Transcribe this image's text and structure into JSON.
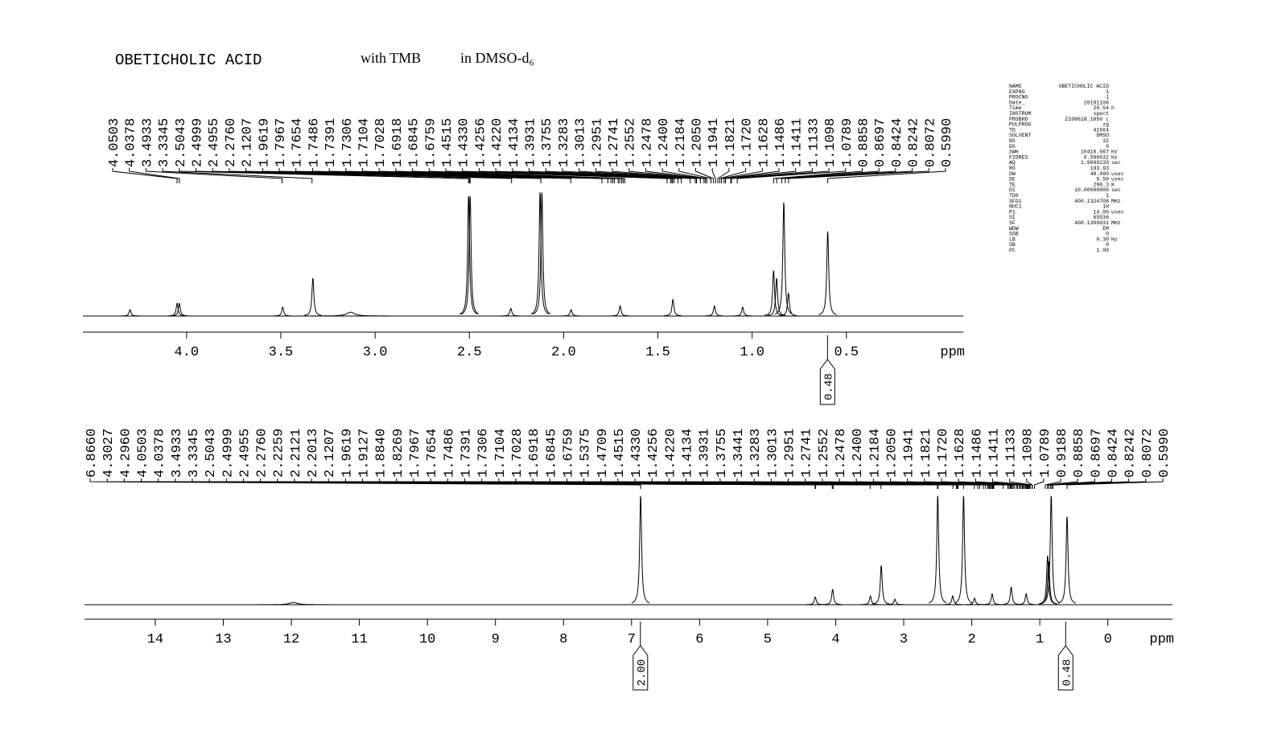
{
  "header": {
    "sample": "OBETICHOLIC ACID",
    "note": "with TMB",
    "solvent": "in DMSO-d₆"
  },
  "parameters": {
    "rows": [
      [
        "NAME",
        "OBETICHOLIC ACID",
        ""
      ],
      [
        "EXPNO",
        "1",
        ""
      ],
      [
        "PROCNO",
        "1",
        ""
      ],
      [
        "Date_",
        "20191106",
        ""
      ],
      [
        "Time",
        "20.54",
        "h"
      ],
      [
        "INSTRUM",
        "spect",
        ""
      ],
      [
        "PROBHD",
        "Z108618_1050 (",
        ""
      ],
      [
        "PULPROG",
        "zg",
        ""
      ],
      [
        "TD",
        "41664",
        ""
      ],
      [
        "SOLVENT",
        "DMSO",
        ""
      ],
      [
        "NS",
        "32",
        ""
      ],
      [
        "DS",
        "0",
        ""
      ],
      [
        "SWH",
        "10416.667",
        "Hz"
      ],
      [
        "FIDRES",
        "0.500032",
        "Hz"
      ],
      [
        "AQ",
        "1.9999220",
        "sec"
      ],
      [
        "RG",
        "193.93",
        ""
      ],
      [
        "DW",
        "48.000",
        "usec"
      ],
      [
        "DE",
        "6.50",
        "usec"
      ],
      [
        "TE",
        "296.3",
        "K"
      ],
      [
        "D1",
        "10.00000000",
        "sec"
      ],
      [
        "TD0",
        "1",
        ""
      ],
      [
        "SFO1",
        "400.1324708",
        "MHz"
      ],
      [
        "NUC1",
        "1H",
        ""
      ],
      [
        "P1",
        "14.00",
        "usec"
      ],
      [
        "SI",
        "65536",
        ""
      ],
      [
        "SF",
        "400.1300031",
        "MHz"
      ],
      [
        "WDW",
        "EM",
        ""
      ],
      [
        "SSB",
        "0",
        ""
      ],
      [
        "LB",
        "0.30",
        "Hz"
      ],
      [
        "GB",
        "0",
        ""
      ],
      [
        "PC",
        "1.00",
        ""
      ]
    ]
  },
  "chart_data": [
    {
      "type": "spectrum",
      "xlabel": "ppm",
      "xlim": [
        4.55,
        -0.12
      ],
      "xticks": [
        {
          "value": 4,
          "label": "4.0"
        },
        3.5,
        {
          "value": 3,
          "label": "3.0"
        },
        2.5,
        {
          "value": 2,
          "label": "2.0"
        },
        1.5,
        {
          "value": 1,
          "label": "1.0"
        },
        0.5
      ],
      "peaks": {
        "x": [
          4.3,
          4.05,
          4.038,
          3.49,
          3.33,
          3.13,
          2.504,
          2.496,
          2.28,
          2.125,
          2.115,
          1.96,
          1.7,
          1.42,
          1.2,
          1.05,
          0.886,
          0.87,
          0.832,
          0.807,
          0.599
        ],
        "values": [
          5,
          10,
          10,
          7,
          30,
          3,
          95,
          95,
          6,
          98,
          98,
          5,
          8,
          13,
          8,
          7,
          36,
          30,
          90,
          18,
          67
        ]
      },
      "peak_labels": [
        "4.0503",
        "4.0378",
        "3.4933",
        "3.3345",
        "2.5043",
        "2.4999",
        "2.4955",
        "2.2760",
        "2.1207",
        "1.9619",
        "1.7967",
        "1.7654",
        "1.7486",
        "1.7391",
        "1.7306",
        "1.7104",
        "1.7028",
        "1.6918",
        "1.6845",
        "1.6759",
        "1.4515",
        "1.4330",
        "1.4256",
        "1.4220",
        "1.4134",
        "1.3931",
        "1.3755",
        "1.3283",
        "1.3013",
        "1.2951",
        "1.2741",
        "1.2552",
        "1.2478",
        "1.2400",
        "1.2184",
        "1.2050",
        "1.1941",
        "1.1821",
        "1.1720",
        "1.1628",
        "1.1486",
        "1.1411",
        "1.1133",
        "1.1098",
        "1.0789",
        "0.8858",
        "0.8697",
        "0.8424",
        "0.8242",
        "0.8072",
        "0.5990"
      ],
      "integrals": [
        {
          "x": 0.6,
          "label": "0.48"
        }
      ]
    },
    {
      "type": "spectrum",
      "xlabel": "ppm",
      "xlim": [
        15.04,
        -0.95
      ],
      "xticks": [
        14,
        13,
        12,
        11,
        10,
        9,
        8,
        7,
        6,
        5,
        4,
        3,
        2,
        1,
        0
      ],
      "peaks": {
        "x": [
          11.97,
          6.866,
          4.3,
          4.044,
          3.49,
          3.33,
          3.13,
          2.5,
          2.28,
          2.12,
          1.96,
          1.7,
          1.42,
          1.2,
          0.886,
          0.87,
          0.832,
          0.599
        ],
        "values": [
          2,
          100,
          7,
          14,
          8,
          36,
          5,
          100,
          8,
          100,
          6,
          10,
          16,
          10,
          45,
          40,
          100,
          81
        ]
      },
      "peak_labels": [
        "6.8660",
        "4.3027",
        "4.2960",
        "4.0503",
        "4.0378",
        "3.4933",
        "3.3345",
        "2.5043",
        "2.4999",
        "2.4955",
        "2.2760",
        "2.2259",
        "2.2121",
        "2.2013",
        "2.1207",
        "1.9619",
        "1.9127",
        "1.8840",
        "1.8269",
        "1.7967",
        "1.7654",
        "1.7486",
        "1.7391",
        "1.7306",
        "1.7104",
        "1.7028",
        "1.6918",
        "1.6845",
        "1.6759",
        "1.5375",
        "1.4709",
        "1.4515",
        "1.4330",
        "1.4256",
        "1.4220",
        "1.4134",
        "1.3931",
        "1.3755",
        "1.3441",
        "1.3283",
        "1.3013",
        "1.2951",
        "1.2741",
        "1.2552",
        "1.2478",
        "1.2400",
        "1.2184",
        "1.2050",
        "1.1941",
        "1.1821",
        "1.1720",
        "1.1628",
        "1.1486",
        "1.1411",
        "1.1133",
        "1.1098",
        "1.0789",
        "0.9188",
        "0.8858",
        "0.8697",
        "0.8424",
        "0.8242",
        "0.8072",
        "0.5990"
      ],
      "integrals": [
        {
          "x": 6.87,
          "label": "2.00"
        },
        {
          "x": 0.62,
          "label": "0.48"
        }
      ]
    }
  ]
}
